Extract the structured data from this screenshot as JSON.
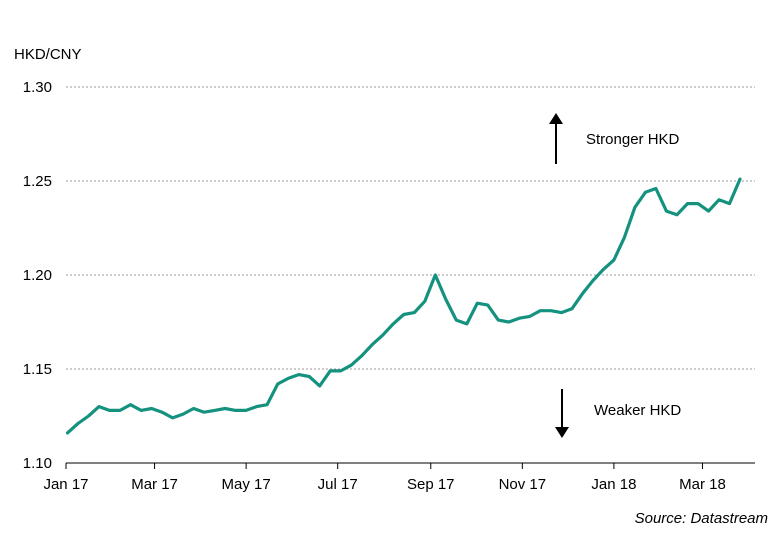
{
  "chart_data": {
    "type": "line",
    "ylabel": "HKD/CNY",
    "source": "Source: Datastream",
    "ylim": [
      1.1,
      1.3
    ],
    "y_ticks": [
      "1.10",
      "1.15",
      "1.20",
      "1.25",
      "1.30"
    ],
    "x_ticks": [
      "Jan 17",
      "Mar 17",
      "May 17",
      "Jul 17",
      "Sep 17",
      "Nov 17",
      "Jan 18",
      "Mar 18"
    ],
    "grid": "horizontal dotted",
    "color": "#14927f",
    "annotations": {
      "up": "Stronger HKD",
      "down": "Weaker HKD"
    },
    "series": [
      {
        "x": [
          "2017-01-02",
          "2017-01-09",
          "2017-01-16",
          "2017-01-23",
          "2017-01-30",
          "2017-02-06",
          "2017-02-13",
          "2017-02-20",
          "2017-02-27",
          "2017-03-06",
          "2017-03-13",
          "2017-03-20",
          "2017-03-27",
          "2017-04-03",
          "2017-04-10",
          "2017-04-17",
          "2017-04-24",
          "2017-05-01",
          "2017-05-08",
          "2017-05-15",
          "2017-05-22",
          "2017-05-29",
          "2017-06-05",
          "2017-06-12",
          "2017-06-19",
          "2017-06-26",
          "2017-07-03",
          "2017-07-10",
          "2017-07-17",
          "2017-07-24",
          "2017-07-31",
          "2017-08-07",
          "2017-08-14",
          "2017-08-21",
          "2017-08-28",
          "2017-09-04",
          "2017-09-11",
          "2017-09-18",
          "2017-09-25",
          "2017-10-02",
          "2017-10-09",
          "2017-10-16",
          "2017-10-23",
          "2017-10-30",
          "2017-11-06",
          "2017-11-13",
          "2017-11-20",
          "2017-11-27",
          "2017-12-04",
          "2017-12-11",
          "2017-12-18",
          "2017-12-25",
          "2018-01-01",
          "2018-01-08",
          "2018-01-15",
          "2018-01-22",
          "2018-01-29",
          "2018-02-05",
          "2018-02-12",
          "2018-02-19",
          "2018-02-26",
          "2018-03-05",
          "2018-03-12",
          "2018-03-19",
          "2018-03-26"
        ],
        "values": [
          1.116,
          1.121,
          1.125,
          1.13,
          1.128,
          1.128,
          1.131,
          1.128,
          1.129,
          1.127,
          1.124,
          1.126,
          1.129,
          1.127,
          1.128,
          1.129,
          1.128,
          1.128,
          1.13,
          1.131,
          1.142,
          1.145,
          1.147,
          1.146,
          1.141,
          1.149,
          1.149,
          1.152,
          1.157,
          1.163,
          1.168,
          1.174,
          1.179,
          1.18,
          1.186,
          1.2,
          1.187,
          1.176,
          1.174,
          1.185,
          1.184,
          1.176,
          1.175,
          1.177,
          1.178,
          1.181,
          1.181,
          1.18,
          1.182,
          1.19,
          1.197,
          1.203,
          1.208,
          1.22,
          1.236,
          1.244,
          1.246,
          1.234,
          1.232,
          1.238,
          1.238,
          1.234,
          1.24,
          1.238,
          1.251
        ]
      }
    ]
  }
}
